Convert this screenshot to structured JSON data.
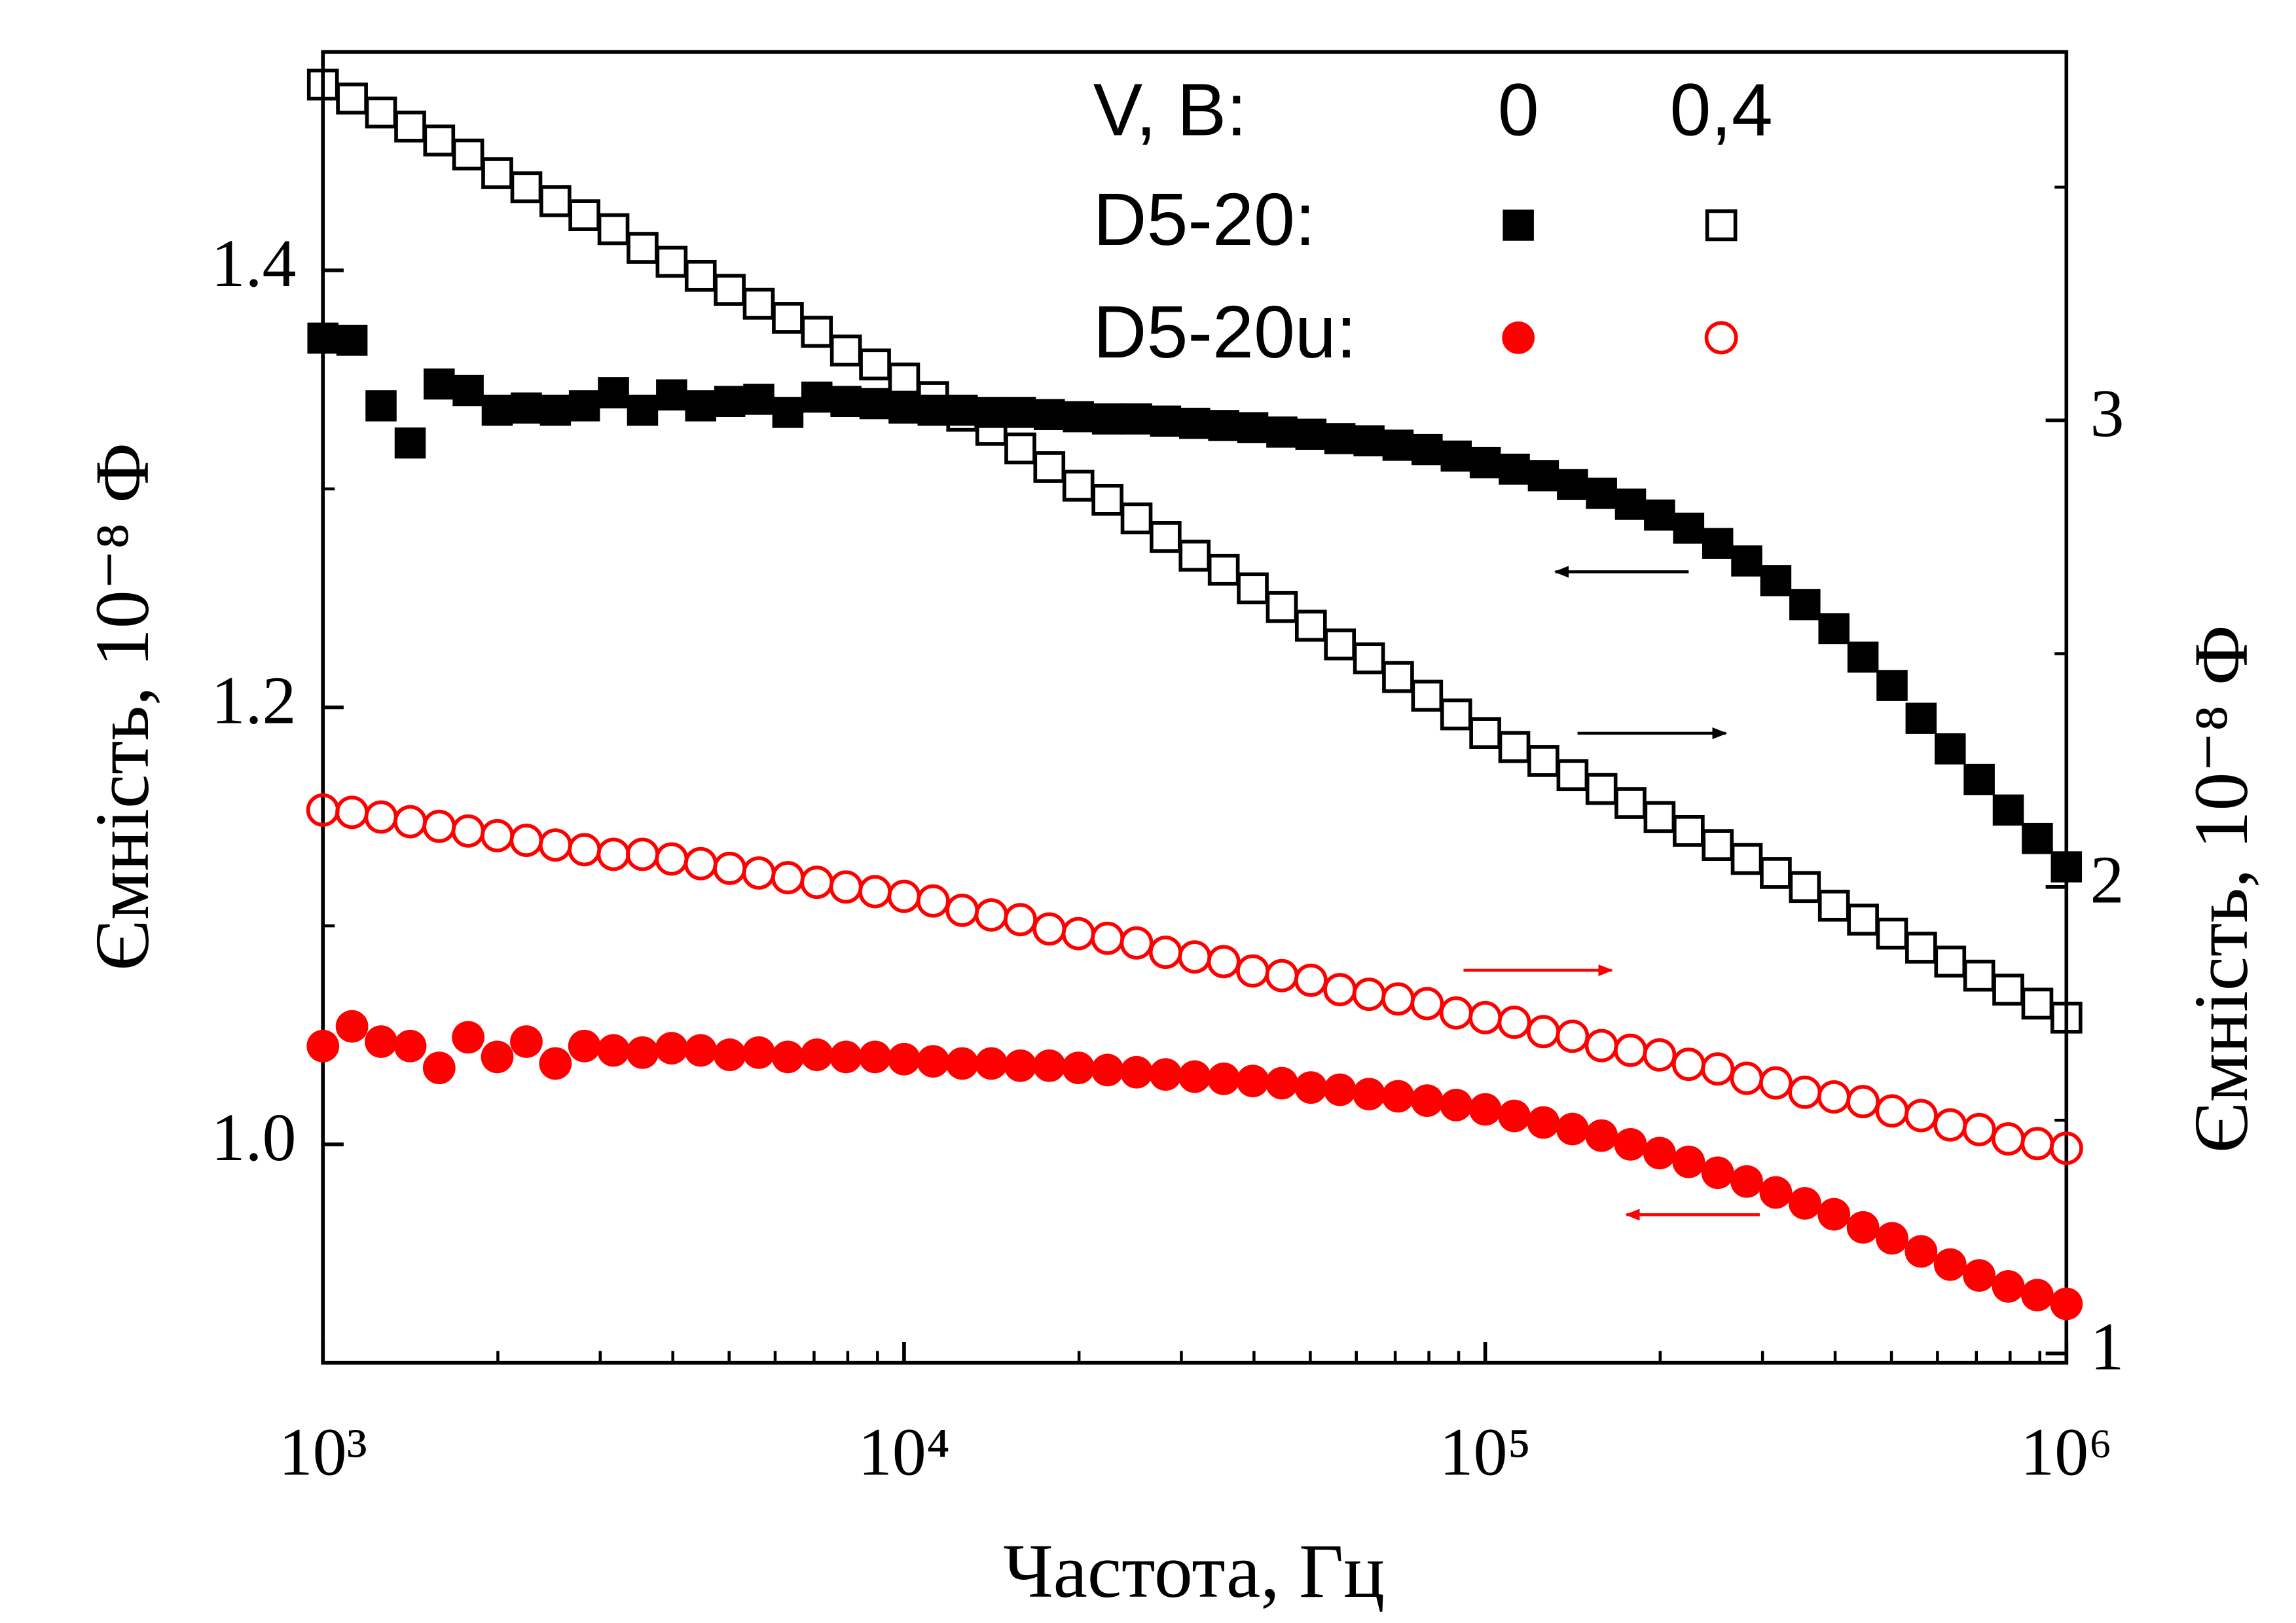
{
  "chart_data": {
    "type": "scatter",
    "xlabel": "Частота, Гц",
    "ylabel": "Ємність,  10⁻⁸ Ф",
    "y2label": "Ємність,  10⁻⁸ Ф",
    "xscale": "log",
    "xlim": [
      1000,
      1000000
    ],
    "xticks": [
      {
        "value": 1000,
        "label": "10³"
      },
      {
        "value": 10000,
        "label": "10⁴"
      },
      {
        "value": 100000,
        "label": "10⁵"
      },
      {
        "value": 1000000,
        "label": "10⁶"
      }
    ],
    "xminorticks": [
      2000,
      3000,
      4000,
      5000,
      6000,
      7000,
      8000,
      9000,
      20000,
      30000,
      40000,
      50000,
      60000,
      70000,
      80000,
      90000,
      200000,
      300000,
      400000,
      500000,
      600000,
      700000,
      800000,
      900000
    ],
    "ylim": [
      0.9,
      1.5
    ],
    "yticks": [
      {
        "value": 1.0,
        "label": "1.0"
      },
      1.2,
      1.4
    ],
    "yminorticks": [
      1.1,
      1.3
    ],
    "y2lim": [
      0.98,
      3.79
    ],
    "y2ticks": [
      1,
      2,
      3
    ],
    "y2minorticks": [
      1.5,
      2.5,
      3.5
    ],
    "legend_title": "V, B:",
    "legend_corner": "upper right",
    "x": [
      1000,
      1122,
      1259,
      1413,
      1585,
      1778,
      1995,
      2239,
      2512,
      2818,
      3162,
      3548,
      3981,
      4467,
      5012,
      5623,
      6310,
      7079,
      7943,
      8913,
      10000,
      11220,
      12590,
      14130,
      15850,
      17780,
      19950,
      22390,
      25120,
      28180,
      31620,
      35480,
      39810,
      44670,
      50120,
      56230,
      63100,
      70790,
      79430,
      89130,
      100000,
      112200,
      125900,
      141300,
      158500,
      177800,
      199500,
      223900,
      251200,
      281800,
      316200,
      354800,
      398100,
      446700,
      501200,
      562300,
      631000,
      707900,
      794300,
      891300,
      1000000
    ],
    "series": [
      {
        "name": "D5-20:",
        "voltage": "0",
        "color": "#000000",
        "marker": "square",
        "filled": true,
        "axis": "y",
        "values": [
          1.369,
          1.368,
          1.338,
          1.321,
          1.348,
          1.345,
          1.336,
          1.337,
          1.336,
          1.338,
          1.344,
          1.336,
          1.343,
          1.338,
          1.34,
          1.341,
          1.335,
          1.342,
          1.34,
          1.339,
          1.337,
          1.336,
          1.336,
          1.335,
          1.335,
          1.334,
          1.333,
          1.332,
          1.332,
          1.331,
          1.33,
          1.329,
          1.328,
          1.326,
          1.325,
          1.323,
          1.322,
          1.32,
          1.318,
          1.315,
          1.312,
          1.309,
          1.306,
          1.302,
          1.298,
          1.293,
          1.288,
          1.282,
          1.275,
          1.267,
          1.258,
          1.247,
          1.236,
          1.223,
          1.21,
          1.195,
          1.181,
          1.167,
          1.153,
          1.14,
          1.127
        ]
      },
      {
        "name": "D5-20:",
        "voltage": "0,4",
        "color": "#000000",
        "marker": "square",
        "filled": false,
        "axis": "y2",
        "values": [
          3.72,
          3.69,
          3.66,
          3.63,
          3.6,
          3.57,
          3.53,
          3.5,
          3.47,
          3.44,
          3.41,
          3.37,
          3.34,
          3.31,
          3.28,
          3.25,
          3.22,
          3.19,
          3.15,
          3.12,
          3.09,
          3.05,
          3.01,
          2.98,
          2.94,
          2.9,
          2.86,
          2.83,
          2.79,
          2.75,
          2.71,
          2.68,
          2.64,
          2.6,
          2.56,
          2.52,
          2.49,
          2.45,
          2.41,
          2.37,
          2.33,
          2.3,
          2.27,
          2.24,
          2.21,
          2.18,
          2.15,
          2.12,
          2.09,
          2.06,
          2.03,
          2.0,
          1.96,
          1.93,
          1.9,
          1.87,
          1.84,
          1.81,
          1.78,
          1.75,
          1.72
        ]
      },
      {
        "name": "D5-20u:",
        "voltage": "0",
        "color": "#ff0000",
        "marker": "circle",
        "filled": true,
        "axis": "y",
        "values": [
          1.045,
          1.054,
          1.047,
          1.045,
          1.035,
          1.049,
          1.04,
          1.047,
          1.037,
          1.045,
          1.043,
          1.042,
          1.044,
          1.043,
          1.041,
          1.042,
          1.04,
          1.041,
          1.04,
          1.04,
          1.039,
          1.038,
          1.037,
          1.037,
          1.036,
          1.036,
          1.035,
          1.034,
          1.033,
          1.032,
          1.031,
          1.03,
          1.029,
          1.028,
          1.026,
          1.025,
          1.023,
          1.022,
          1.02,
          1.018,
          1.016,
          1.013,
          1.01,
          1.007,
          1.004,
          1.0,
          0.996,
          0.992,
          0.987,
          0.983,
          0.978,
          0.973,
          0.968,
          0.962,
          0.957,
          0.951,
          0.945,
          0.94,
          0.935,
          0.931,
          0.927
        ]
      },
      {
        "name": "D5-20u:",
        "voltage": "0,4",
        "color": "#ff0000",
        "marker": "circle",
        "filled": false,
        "axis": "y2",
        "values": [
          2.165,
          2.16,
          2.15,
          2.14,
          2.13,
          2.12,
          2.11,
          2.1,
          2.09,
          2.08,
          2.07,
          2.07,
          2.06,
          2.05,
          2.04,
          2.03,
          2.02,
          2.01,
          2.0,
          1.99,
          1.98,
          1.97,
          1.95,
          1.94,
          1.93,
          1.91,
          1.9,
          1.89,
          1.88,
          1.86,
          1.85,
          1.84,
          1.82,
          1.81,
          1.8,
          1.78,
          1.77,
          1.76,
          1.75,
          1.73,
          1.72,
          1.71,
          1.69,
          1.68,
          1.66,
          1.65,
          1.64,
          1.62,
          1.61,
          1.59,
          1.58,
          1.56,
          1.55,
          1.54,
          1.52,
          1.51,
          1.49,
          1.48,
          1.46,
          1.45,
          1.44
        ]
      }
    ]
  }
}
